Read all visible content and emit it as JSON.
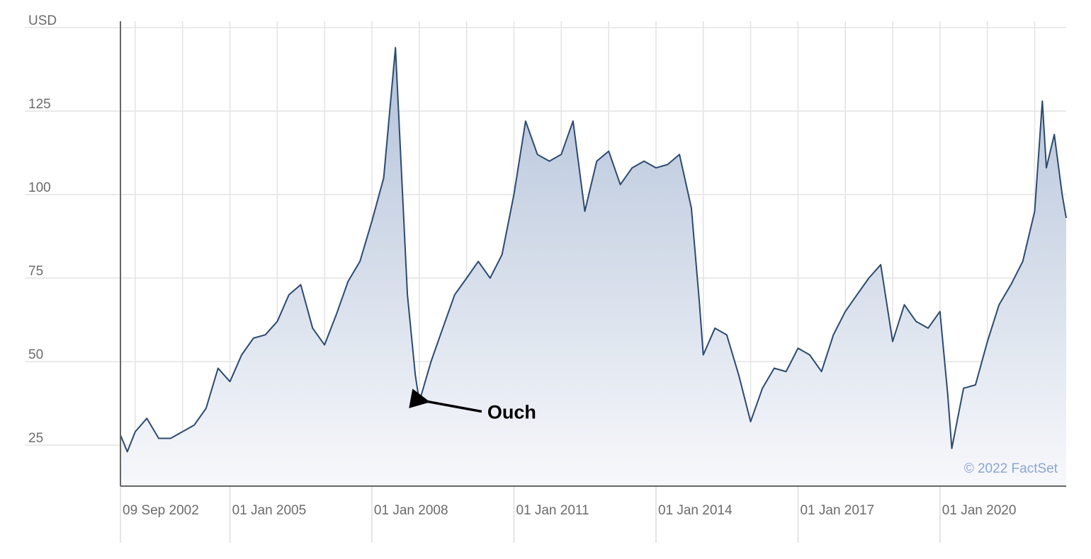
{
  "chart_data": {
    "type": "area",
    "x": [
      "2002-09-09",
      "2002-11-01",
      "2003-01-01",
      "2003-04-01",
      "2003-07-01",
      "2003-10-01",
      "2004-01-01",
      "2004-04-01",
      "2004-07-01",
      "2004-10-01",
      "2005-01-01",
      "2005-04-01",
      "2005-07-01",
      "2005-10-01",
      "2006-01-01",
      "2006-04-01",
      "2006-07-01",
      "2006-10-01",
      "2007-01-01",
      "2007-04-01",
      "2007-07-01",
      "2007-10-01",
      "2008-01-01",
      "2008-04-01",
      "2008-07-01",
      "2008-10-01",
      "2008-12-01",
      "2009-01-01",
      "2009-04-01",
      "2009-07-01",
      "2009-10-01",
      "2010-01-01",
      "2010-04-01",
      "2010-07-01",
      "2010-10-01",
      "2011-01-01",
      "2011-04-01",
      "2011-07-01",
      "2011-10-01",
      "2012-01-01",
      "2012-04-01",
      "2012-07-01",
      "2012-10-01",
      "2013-01-01",
      "2013-04-01",
      "2013-07-01",
      "2013-10-01",
      "2014-01-01",
      "2014-04-01",
      "2014-07-01",
      "2014-10-01",
      "2014-12-01",
      "2015-01-01",
      "2015-04-01",
      "2015-07-01",
      "2015-10-01",
      "2016-01-01",
      "2016-04-01",
      "2016-07-01",
      "2016-10-01",
      "2017-01-01",
      "2017-04-01",
      "2017-07-01",
      "2017-10-01",
      "2018-01-01",
      "2018-04-01",
      "2018-07-01",
      "2018-10-01",
      "2019-01-01",
      "2019-04-01",
      "2019-07-01",
      "2019-10-01",
      "2020-01-01",
      "2020-03-01",
      "2020-04-01",
      "2020-07-01",
      "2020-10-01",
      "2021-01-01",
      "2021-04-01",
      "2021-07-01",
      "2021-10-01",
      "2022-01-01",
      "2022-03-01",
      "2022-04-01",
      "2022-06-01",
      "2022-08-01",
      "2022-09-01"
    ],
    "series": [
      {
        "color": "#2c4a70",
        "values": [
          28,
          23,
          29,
          33,
          27,
          27,
          29,
          31,
          36,
          48,
          44,
          52,
          57,
          58,
          62,
          70,
          73,
          60,
          55,
          64,
          74,
          80,
          92,
          105,
          144,
          70,
          46,
          38,
          50,
          60,
          70,
          75,
          80,
          75,
          82,
          100,
          122,
          112,
          110,
          112,
          122,
          95,
          110,
          113,
          103,
          108,
          110,
          108,
          109,
          112,
          96,
          68,
          52,
          60,
          58,
          46,
          32,
          42,
          48,
          47,
          54,
          52,
          47,
          58,
          65,
          70,
          75,
          79,
          56,
          67,
          62,
          60,
          65,
          40,
          24,
          42,
          43,
          56,
          67,
          73,
          80,
          95,
          128,
          108,
          118,
          100,
          93
        ]
      }
    ],
    "xlim": [
      "2002-09-09",
      "2022-09-01"
    ],
    "xticks": [
      {
        "value": "2002-09-09",
        "label": "09 Sep 2002"
      },
      {
        "value": "2005-01-01",
        "label": "01 Jan 2005"
      },
      {
        "value": "2008-01-01",
        "label": "01 Jan 2008"
      },
      {
        "value": "2011-01-01",
        "label": "01 Jan 2011"
      },
      {
        "value": "2014-01-01",
        "label": "01 Jan 2014"
      },
      {
        "value": "2017-01-01",
        "label": "01 Jan 2017"
      },
      {
        "value": "2020-01-01",
        "label": "01 Jan 2020"
      }
    ],
    "xminorticks": [
      "2003-01-01",
      "2004-01-01",
      "2005-01-01",
      "2006-01-01",
      "2007-01-01",
      "2008-01-01",
      "2009-01-01",
      "2010-01-01",
      "2011-01-01",
      "2012-01-01",
      "2013-01-01",
      "2014-01-01",
      "2015-01-01",
      "2016-01-01",
      "2017-01-01",
      "2018-01-01",
      "2019-01-01",
      "2020-01-01",
      "2021-01-01",
      "2022-01-01"
    ],
    "ylim": [
      12.7,
      151.9
    ],
    "yticks": [
      25,
      50,
      75,
      100,
      125,
      {
        "value": 150,
        "label": "USD"
      }
    ],
    "grid": true,
    "annotation": {
      "text": "Ouch",
      "x": "2009-01-01",
      "y": 38
    },
    "credit": "© 2022 FactSet"
  }
}
